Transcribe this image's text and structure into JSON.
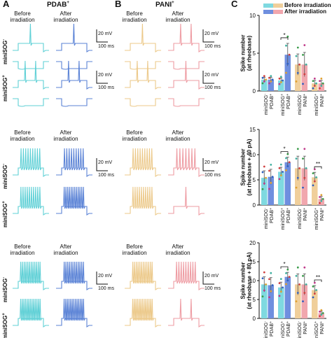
{
  "panels": {
    "A": {
      "letter": "A",
      "title": "PDAB",
      "title_sup": "+"
    },
    "B": {
      "letter": "B",
      "title": "PANI",
      "title_sup": "+"
    },
    "C": {
      "letter": "C"
    }
  },
  "col_labels": {
    "before": "Before\nirradiation",
    "after": "After\nirradiation"
  },
  "row_labels": {
    "minus": "miniSOG",
    "minus_sup": "-",
    "plus": "miniSOG",
    "plus_sup": "+"
  },
  "scalebars": {
    "mv": "20 mV",
    "ms": "100 ms"
  },
  "legend": {
    "before": "Before irradiation",
    "after": "After irradiation"
  },
  "colors": {
    "pdab_before": "#5fd0d6",
    "pdab_after": "#5b83d6",
    "pani_before": "#ecc98a",
    "pani_after": "#ee9ca3",
    "bar_pdab_before": "#7fd9e0",
    "bar_pdab_after": "#6f8fdf",
    "bar_pani_before": "#f0cf9b",
    "bar_pani_after": "#f1a7ae"
  },
  "chart_data": [
    {
      "type": "bar",
      "ylabel": "Spike number\n(at rheobase)",
      "ylim": [
        0,
        10
      ],
      "yticks": [
        0,
        5,
        10
      ],
      "categories": [
        "miniSOG- PDAB+",
        "miniSOG+ PDAB+",
        "miniSOG- PANI+",
        "miniSOG+ PANI+"
      ],
      "category_lines": [
        [
          "miniSOG",
          "-",
          "PDAB",
          "+"
        ],
        [
          "miniSOG",
          "+",
          "PDAB",
          "+"
        ],
        [
          "miniSOG",
          "-",
          "PANI",
          "+"
        ],
        [
          "miniSOG",
          "+",
          "PANI",
          "+"
        ]
      ],
      "series": [
        {
          "name": "Before irradiation",
          "values": [
            1.5,
            1.4,
            3.5,
            1.0
          ],
          "errors": [
            0.3,
            0.3,
            1.4,
            0.4
          ]
        },
        {
          "name": "After irradiation",
          "values": [
            1.5,
            4.8,
            3.5,
            1.0
          ],
          "errors": [
            0.3,
            1.5,
            1.6,
            0.4
          ]
        }
      ],
      "significance": [
        {
          "group": 1,
          "label": "*"
        }
      ]
    },
    {
      "type": "bar",
      "ylabel": "Spike number\n(at rheobase + 40 pA)",
      "ylim": [
        0,
        15
      ],
      "yticks": [
        0,
        5,
        10,
        15
      ],
      "categories": [
        "miniSOG- PDAB+",
        "miniSOG+ PDAB+",
        "miniSOG- PANI+",
        "miniSOG+ PANI+"
      ],
      "category_lines": [
        [
          "miniSOG",
          "-",
          "PDAB",
          "+"
        ],
        [
          "miniSOG",
          "+",
          "PDAB",
          "+"
        ],
        [
          "miniSOG",
          "-",
          "PANI",
          "+"
        ],
        [
          "miniSOG",
          "+",
          "PANI",
          "+"
        ]
      ],
      "series": [
        {
          "name": "Before irradiation",
          "values": [
            5.4,
            6.6,
            7.3,
            5.5
          ],
          "errors": [
            1.4,
            0.9,
            2.4,
            1.0
          ]
        },
        {
          "name": "After irradiation",
          "values": [
            5.6,
            8.5,
            7.3,
            1.2
          ],
          "errors": [
            1.5,
            1.0,
            2.4,
            0.5
          ]
        }
      ],
      "significance": [
        {
          "group": 1,
          "label": "*"
        },
        {
          "group": 3,
          "label": "**"
        }
      ]
    },
    {
      "type": "bar",
      "ylabel": "Spike number\n(at rheobase + 80 pA)",
      "ylim": [
        0,
        20
      ],
      "yticks": [
        0,
        5,
        10,
        15,
        20
      ],
      "categories": [
        "miniSOG- PDAB+",
        "miniSOG+ PDAB+",
        "miniSOG- PANI+",
        "miniSOG+ PANI+"
      ],
      "category_lines": [
        [
          "miniSOG",
          "-",
          "PDAB",
          "+"
        ],
        [
          "miniSOG",
          "+",
          "PDAB",
          "+"
        ],
        [
          "miniSOG",
          "-",
          "PANI",
          "+"
        ],
        [
          "miniSOG",
          "+",
          "PANI",
          "+"
        ]
      ],
      "series": [
        {
          "name": "Before irradiation",
          "values": [
            9.0,
            8.2,
            9.0,
            7.5
          ],
          "errors": [
            2.0,
            1.4,
            2.8,
            1.2
          ]
        },
        {
          "name": "After irradiation",
          "values": [
            8.8,
            11.0,
            9.0,
            1.4
          ],
          "errors": [
            2.0,
            1.2,
            2.8,
            0.5
          ]
        }
      ],
      "significance": [
        {
          "group": 1,
          "label": "*"
        },
        {
          "group": 3,
          "label": "**"
        }
      ]
    }
  ]
}
